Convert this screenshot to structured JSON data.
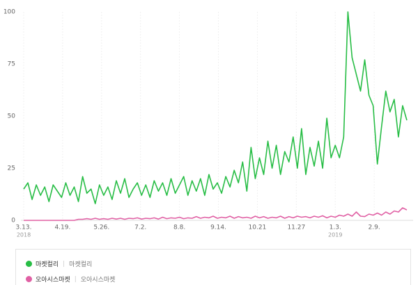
{
  "chart_data": {
    "type": "line",
    "x": [
      0,
      4,
      8,
      12,
      16,
      20,
      24,
      28,
      32,
      36,
      40,
      44,
      48,
      52,
      56,
      60,
      64,
      68,
      72,
      76,
      80,
      84,
      88,
      92,
      96,
      100,
      104,
      108,
      112,
      116,
      120,
      124,
      128,
      132,
      136,
      140,
      144,
      148,
      152,
      156,
      160,
      164,
      168,
      172,
      176,
      180,
      184,
      188,
      192,
      196,
      200,
      204,
      208,
      212,
      216,
      220,
      224,
      228,
      232,
      236,
      240,
      244,
      248,
      252,
      256,
      260,
      264,
      268,
      272,
      276,
      280,
      284,
      288,
      292,
      296,
      300,
      304,
      308,
      312,
      316,
      320,
      324,
      328,
      332,
      336,
      340,
      344,
      348,
      352,
      356,
      360,
      364
    ],
    "xlim": [
      0,
      366
    ],
    "xticks": [
      {
        "value": 0,
        "label": "3.13."
      },
      {
        "value": 37,
        "label": "4.19."
      },
      {
        "value": 74,
        "label": "5.26."
      },
      {
        "value": 111,
        "label": "7.2."
      },
      {
        "value": 148,
        "label": "8.8."
      },
      {
        "value": 185,
        "label": "9.14."
      },
      {
        "value": 222,
        "label": "10.21"
      },
      {
        "value": 259,
        "label": "11.27"
      },
      {
        "value": 296,
        "label": "1.3."
      },
      {
        "value": 333,
        "label": "2.9."
      }
    ],
    "year_labels": [
      {
        "value": 0,
        "label": "2018"
      },
      {
        "value": 296,
        "label": "2019"
      }
    ],
    "ylim": [
      0,
      100
    ],
    "yticks": [
      0,
      25,
      50,
      75,
      100
    ],
    "grid": true,
    "series": [
      {
        "name": "마켓컬리",
        "keywords": "마켓컬리",
        "color": "#27bd45",
        "values": [
          15,
          18,
          10,
          17,
          12,
          16,
          9,
          17,
          14,
          11,
          18,
          12,
          16,
          9,
          21,
          13,
          15,
          8,
          17,
          12,
          16,
          10,
          19,
          13,
          20,
          11,
          15,
          18,
          12,
          17,
          11,
          19,
          14,
          18,
          12,
          20,
          13,
          17,
          21,
          12,
          19,
          14,
          20,
          12,
          22,
          15,
          18,
          13,
          21,
          16,
          24,
          18,
          28,
          14,
          35,
          20,
          30,
          22,
          38,
          25,
          36,
          22,
          33,
          28,
          40,
          25,
          44,
          22,
          35,
          26,
          38,
          25,
          49,
          30,
          36,
          30,
          40,
          100,
          78,
          70,
          62,
          77,
          60,
          55,
          27,
          45,
          62,
          52,
          58,
          40,
          55,
          48
        ]
      },
      {
        "name": "오아시스마켓",
        "keywords": "오아시스마켓",
        "color": "#e060a4",
        "values": [
          0,
          0,
          0,
          0,
          0,
          0,
          0,
          0,
          0,
          0,
          0,
          0,
          0,
          0.5,
          0.5,
          0.8,
          0.5,
          1,
          0.5,
          0.8,
          0.5,
          1,
          0.6,
          1,
          0.5,
          1,
          0.8,
          1.2,
          0.6,
          1,
          0.8,
          1.2,
          0.6,
          1.5,
          0.8,
          1.2,
          1,
          1.5,
          0.8,
          1.2,
          1,
          1.8,
          1,
          1.5,
          1.2,
          2,
          1,
          1.5,
          1.2,
          2,
          1,
          1.8,
          1.2,
          1.5,
          1,
          2,
          1.2,
          1.8,
          1,
          1.5,
          1.2,
          2,
          1,
          1.8,
          1.2,
          2,
          1.5,
          1.8,
          1.2,
          2,
          1.5,
          2.2,
          1.2,
          2,
          1.5,
          2.5,
          2,
          3,
          2,
          4,
          2,
          1.8,
          3,
          2.5,
          3.5,
          2.5,
          4,
          3,
          4.5,
          4,
          6,
          5
        ]
      }
    ]
  }
}
